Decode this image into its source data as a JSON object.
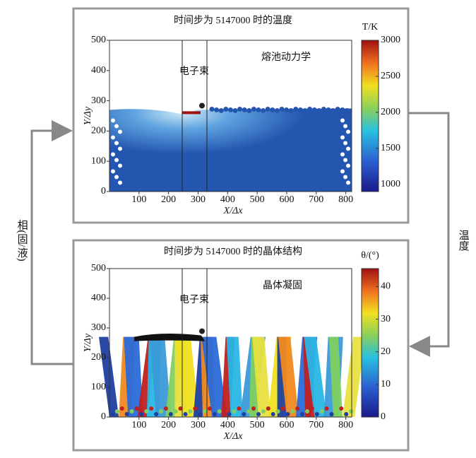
{
  "panels": [
    {
      "title": "时间步为 5147000 时的温度",
      "annotation": "熔池动力学",
      "beam_label": "电子束",
      "x_label": "X/Δx",
      "y_label": "Y/Δy",
      "colorbar_label": "T/K",
      "xlim": [
        0,
        820
      ],
      "xticks": [
        100,
        200,
        300,
        400,
        500,
        600,
        700,
        800
      ],
      "ylim": [
        0,
        500
      ],
      "yticks": [
        0,
        100,
        200,
        300,
        400,
        500
      ],
      "colorbar_lim": [
        900,
        3000
      ],
      "colorbar_ticks": [
        1000,
        1500,
        2000,
        2500,
        3000
      ]
    },
    {
      "title": "时间步为 5147000 时的晶体结构",
      "annotation": "晶体凝固",
      "beam_label": "电子束",
      "x_label": "X/Δx",
      "y_label": "Y/Δy",
      "colorbar_label": "θ/(°)",
      "xlim": [
        0,
        820
      ],
      "xticks": [
        100,
        200,
        300,
        400,
        500,
        600,
        700,
        800
      ],
      "ylim": [
        0,
        500
      ],
      "yticks": [
        0,
        100,
        200,
        300,
        400,
        500
      ],
      "colorbar_lim": [
        0,
        45.5
      ],
      "colorbar_ticks": [
        0,
        10,
        20,
        30,
        40
      ]
    }
  ],
  "arrows": {
    "left": "相(固/液)",
    "right": "温度"
  }
}
